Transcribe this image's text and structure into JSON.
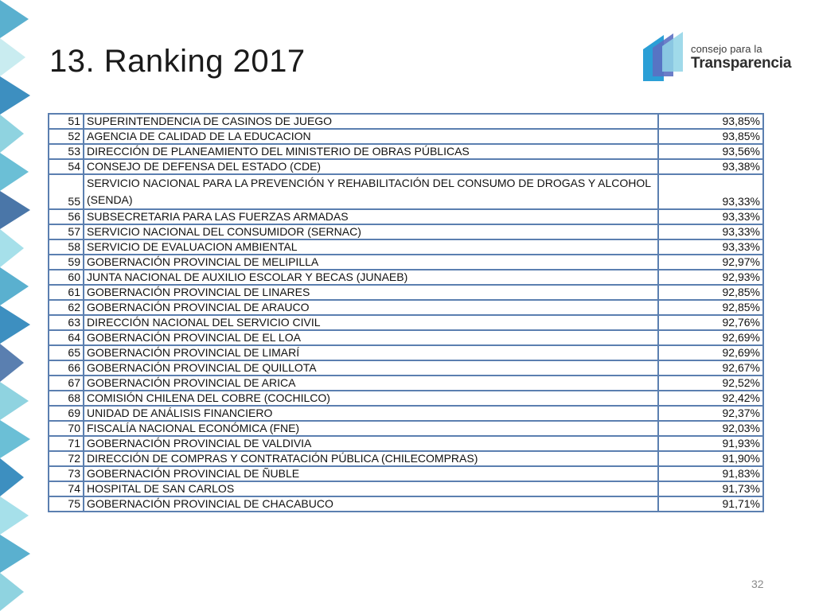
{
  "title": "13. Ranking 2017",
  "logo": {
    "line1": "consejo para la",
    "line2": "Transparencia"
  },
  "page_number": "32",
  "rows": [
    {
      "rank": "51",
      "name": "SUPERINTENDENCIA DE CASINOS DE JUEGO",
      "value": "93,85%"
    },
    {
      "rank": "52",
      "name": "AGENCIA DE CALIDAD DE LA EDUCACION",
      "value": "93,85%"
    },
    {
      "rank": "53",
      "name": "DIRECCIÓN DE PLANEAMIENTO DEL MINISTERIO DE OBRAS PÚBLICAS",
      "value": "93,56%"
    },
    {
      "rank": "54",
      "name": "CONSEJO DE DEFENSA DEL ESTADO (CDE)",
      "value": "93,38%"
    },
    {
      "rank": "55",
      "name": "SERVICIO NACIONAL PARA LA PREVENCIÓN Y REHABILITACIÓN DEL CONSUMO DE DROGAS Y ALCOHOL (SENDA)",
      "value": "93,33%"
    },
    {
      "rank": "56",
      "name": "SUBSECRETARIA PARA LAS FUERZAS ARMADAS",
      "value": "93,33%"
    },
    {
      "rank": "57",
      "name": "SERVICIO NACIONAL DEL CONSUMIDOR (SERNAC)",
      "value": "93,33%"
    },
    {
      "rank": "58",
      "name": "SERVICIO DE EVALUACION AMBIENTAL",
      "value": "93,33%"
    },
    {
      "rank": "59",
      "name": "GOBERNACIÓN PROVINCIAL DE MELIPILLA",
      "value": "92,97%"
    },
    {
      "rank": "60",
      "name": "JUNTA NACIONAL DE AUXILIO ESCOLAR Y BECAS (JUNAEB)",
      "value": "92,93%"
    },
    {
      "rank": "61",
      "name": "GOBERNACIÓN PROVINCIAL DE LINARES",
      "value": "92,85%"
    },
    {
      "rank": "62",
      "name": "GOBERNACIÓN PROVINCIAL DE ARAUCO",
      "value": "92,85%"
    },
    {
      "rank": "63",
      "name": "DIRECCIÓN NACIONAL DEL SERVICIO CIVIL",
      "value": "92,76%"
    },
    {
      "rank": "64",
      "name": "GOBERNACIÓN PROVINCIAL DE EL LOA",
      "value": "92,69%"
    },
    {
      "rank": "65",
      "name": "GOBERNACIÓN PROVINCIAL DE LIMARÍ",
      "value": "92,69%"
    },
    {
      "rank": "66",
      "name": "GOBERNACIÓN PROVINCIAL DE QUILLOTA",
      "value": "92,67%"
    },
    {
      "rank": "67",
      "name": "GOBERNACIÓN PROVINCIAL DE ARICA",
      "value": "92,52%"
    },
    {
      "rank": "68",
      "name": "COMISIÓN CHILENA DEL COBRE (COCHILCO)",
      "value": "92,42%"
    },
    {
      "rank": "69",
      "name": "UNIDAD DE ANÁLISIS FINANCIERO",
      "value": "92,37%"
    },
    {
      "rank": "70",
      "name": "FISCALÍA NACIONAL ECONÓMICA (FNE)",
      "value": "92,03%"
    },
    {
      "rank": "71",
      "name": "GOBERNACIÓN PROVINCIAL DE VALDIVIA",
      "value": "91,93%"
    },
    {
      "rank": "72",
      "name": "DIRECCIÓN DE COMPRAS Y CONTRATACIÓN PÚBLICA (CHILECOMPRAS)",
      "value": "91,90%"
    },
    {
      "rank": "73",
      "name": "GOBERNACIÓN PROVINCIAL DE ÑUBLE",
      "value": "91,83%"
    },
    {
      "rank": "74",
      "name": "HOSPITAL  DE SAN CARLOS",
      "value": "91,73%"
    },
    {
      "rank": "75",
      "name": "GOBERNACIÓN PROVINCIAL DE CHACABUCO",
      "value": "91,71%"
    }
  ]
}
